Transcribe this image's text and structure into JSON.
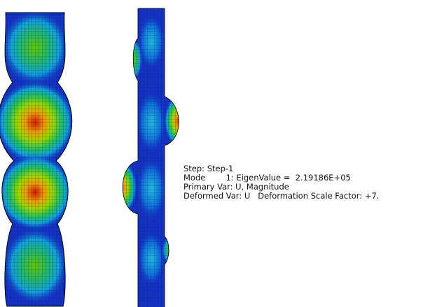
{
  "legend_text": {
    "lines": [
      "Step: Step-1",
      "Mode        1: EigenValue =  2.19186E+05",
      "Primary Var: U, Magnitude",
      "Deformed Var: U   Deformation Scale Factor: +7."
    ]
  }
}
